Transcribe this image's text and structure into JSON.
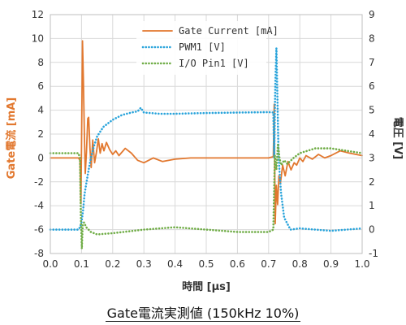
{
  "caption": "Gate電流実測値 (150kHz 10%)",
  "colors": {
    "gate_current": "#e2782f",
    "pwm1": "#2aa4db",
    "io_pin1": "#70ad47",
    "grid": "#d9d9d9"
  },
  "chart_data": {
    "type": "line",
    "title": "Gate電流実測値 (150kHz 10%)",
    "xlabel": "時間 [μs]",
    "ylabel_left": "Gate電流 [mA]",
    "ylabel_right": "電圧 [V]",
    "xlim": [
      0.0,
      1.0
    ],
    "ylim_left": [
      -8,
      12
    ],
    "ylim_right": [
      -1,
      9
    ],
    "x_ticks": [
      "0.0",
      "0.1",
      "0.2",
      "0.3",
      "0.4",
      "0.5",
      "0.6",
      "0.7",
      "0.8",
      "0.9",
      "1.0"
    ],
    "y_left_ticks": [
      "-8",
      "-6",
      "-4",
      "-2",
      "0",
      "2",
      "4",
      "6",
      "8",
      "10",
      "12"
    ],
    "y_right_ticks": [
      "-1",
      "0",
      "1",
      "2",
      "3",
      "4",
      "5",
      "6",
      "7",
      "8",
      "9"
    ],
    "grid": true,
    "legend_position": "top-center",
    "series": [
      {
        "name": "Gate Current [mA]",
        "axis": "left",
        "style": "solid",
        "points": [
          [
            0.0,
            0.0
          ],
          [
            0.09,
            0.0
          ],
          [
            0.095,
            -0.2
          ],
          [
            0.098,
            -3.8
          ],
          [
            0.1,
            1.0
          ],
          [
            0.103,
            9.8
          ],
          [
            0.106,
            6.5
          ],
          [
            0.109,
            2.0
          ],
          [
            0.112,
            -1.3
          ],
          [
            0.116,
            0.5
          ],
          [
            0.12,
            3.3
          ],
          [
            0.123,
            3.4
          ],
          [
            0.127,
            0.8
          ],
          [
            0.131,
            -0.8
          ],
          [
            0.136,
            1.5
          ],
          [
            0.142,
            -0.4
          ],
          [
            0.148,
            0.5
          ],
          [
            0.154,
            1.6
          ],
          [
            0.16,
            0.4
          ],
          [
            0.166,
            1.2
          ],
          [
            0.172,
            0.6
          ],
          [
            0.18,
            1.3
          ],
          [
            0.19,
            0.7
          ],
          [
            0.2,
            0.3
          ],
          [
            0.21,
            0.6
          ],
          [
            0.22,
            0.2
          ],
          [
            0.24,
            0.8
          ],
          [
            0.26,
            0.4
          ],
          [
            0.28,
            -0.2
          ],
          [
            0.3,
            -0.4
          ],
          [
            0.33,
            0.0
          ],
          [
            0.36,
            -0.3
          ],
          [
            0.4,
            -0.1
          ],
          [
            0.45,
            0.0
          ],
          [
            0.5,
            0.0
          ],
          [
            0.6,
            0.0
          ],
          [
            0.7,
            0.0
          ],
          [
            0.715,
            0.1
          ],
          [
            0.718,
            4.5
          ],
          [
            0.721,
            -5.5
          ],
          [
            0.725,
            -2.3
          ],
          [
            0.729,
            -3.9
          ],
          [
            0.733,
            -1.5
          ],
          [
            0.738,
            -2.1
          ],
          [
            0.745,
            -0.6
          ],
          [
            0.753,
            -1.5
          ],
          [
            0.762,
            -0.3
          ],
          [
            0.772,
            -1.0
          ],
          [
            0.782,
            -0.4
          ],
          [
            0.79,
            -0.6
          ],
          [
            0.8,
            0.0
          ],
          [
            0.81,
            -0.3
          ],
          [
            0.82,
            0.2
          ],
          [
            0.84,
            -0.1
          ],
          [
            0.86,
            0.3
          ],
          [
            0.88,
            0.0
          ],
          [
            0.9,
            0.2
          ],
          [
            0.93,
            0.6
          ],
          [
            0.96,
            0.4
          ],
          [
            1.0,
            0.2
          ]
        ]
      },
      {
        "name": "PWM1 [V]",
        "axis": "right",
        "style": "dotted",
        "points": [
          [
            0.0,
            0.0
          ],
          [
            0.09,
            0.0
          ],
          [
            0.095,
            0.1
          ],
          [
            0.1,
            0.3
          ],
          [
            0.105,
            0.8
          ],
          [
            0.11,
            1.5
          ],
          [
            0.12,
            2.3
          ],
          [
            0.13,
            3.0
          ],
          [
            0.14,
            3.5
          ],
          [
            0.15,
            3.9
          ],
          [
            0.17,
            4.3
          ],
          [
            0.2,
            4.6
          ],
          [
            0.23,
            4.8
          ],
          [
            0.26,
            4.9
          ],
          [
            0.28,
            4.95
          ],
          [
            0.29,
            5.1
          ],
          [
            0.3,
            4.9
          ],
          [
            0.35,
            4.85
          ],
          [
            0.4,
            4.85
          ],
          [
            0.5,
            4.88
          ],
          [
            0.6,
            4.9
          ],
          [
            0.7,
            4.92
          ],
          [
            0.715,
            4.9
          ],
          [
            0.718,
            3.0
          ],
          [
            0.72,
            5.0
          ],
          [
            0.722,
            6.3
          ],
          [
            0.725,
            7.6
          ],
          [
            0.728,
            5.6
          ],
          [
            0.732,
            3.0
          ],
          [
            0.74,
            1.5
          ],
          [
            0.75,
            0.5
          ],
          [
            0.77,
            0.0
          ],
          [
            0.8,
            0.05
          ],
          [
            0.9,
            -0.05
          ],
          [
            1.0,
            0.05
          ]
        ]
      },
      {
        "name": "I/O Pin1 [V]",
        "axis": "right",
        "style": "dotted",
        "points": [
          [
            0.0,
            3.2
          ],
          [
            0.09,
            3.2
          ],
          [
            0.095,
            3.0
          ],
          [
            0.098,
            0.5
          ],
          [
            0.101,
            -0.8
          ],
          [
            0.104,
            0.2
          ],
          [
            0.108,
            0.3
          ],
          [
            0.115,
            0.1
          ],
          [
            0.13,
            -0.1
          ],
          [
            0.15,
            -0.2
          ],
          [
            0.2,
            -0.15
          ],
          [
            0.3,
            0.0
          ],
          [
            0.4,
            0.1
          ],
          [
            0.5,
            0.0
          ],
          [
            0.6,
            -0.1
          ],
          [
            0.7,
            -0.1
          ],
          [
            0.715,
            0.0
          ],
          [
            0.72,
            3.1
          ],
          [
            0.725,
            2.5
          ],
          [
            0.73,
            3.6
          ],
          [
            0.735,
            3.0
          ],
          [
            0.74,
            2.7
          ],
          [
            0.75,
            2.9
          ],
          [
            0.76,
            2.75
          ],
          [
            0.78,
            3.0
          ],
          [
            0.8,
            3.2
          ],
          [
            0.85,
            3.4
          ],
          [
            0.9,
            3.4
          ],
          [
            0.95,
            3.3
          ],
          [
            1.0,
            3.2
          ]
        ]
      }
    ]
  }
}
